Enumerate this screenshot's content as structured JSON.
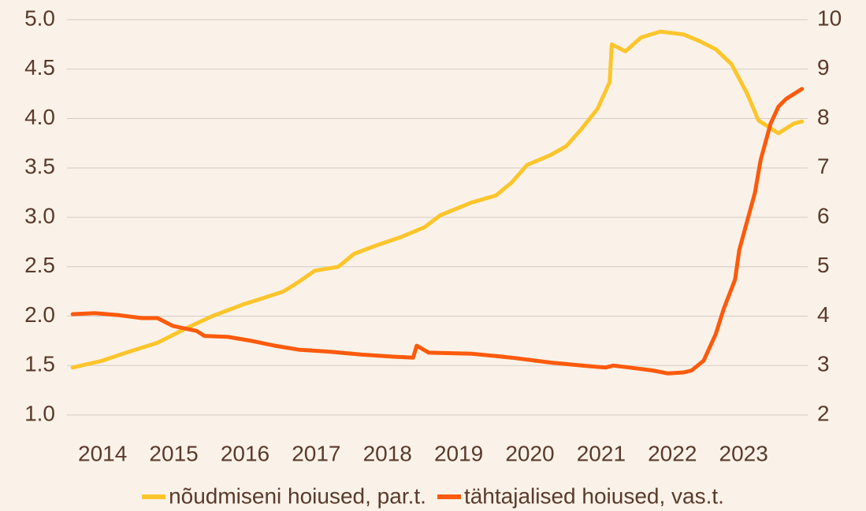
{
  "chart_data": {
    "type": "line",
    "xlim": [
      2014,
      2024.4
    ],
    "xticks": [
      {
        "value": 2014.5,
        "label": "2014"
      },
      {
        "value": 2015.5,
        "label": "2015"
      },
      {
        "value": 2016.5,
        "label": "2016"
      },
      {
        "value": 2017.5,
        "label": "2017"
      },
      {
        "value": 2018.5,
        "label": "2018"
      },
      {
        "value": 2019.5,
        "label": "2019"
      },
      {
        "value": 2020.5,
        "label": "2020"
      },
      {
        "value": 2021.5,
        "label": "2021"
      },
      {
        "value": 2022.5,
        "label": "2022"
      },
      {
        "value": 2023.5,
        "label": "2023"
      }
    ],
    "ylim": [
      1,
      5
    ],
    "yticks": [
      {
        "value": 1,
        "label": "1.0"
      },
      1.5,
      {
        "value": 2,
        "label": "2.0"
      },
      2.5,
      {
        "value": 3,
        "label": "3.0"
      },
      3.5,
      {
        "value": 4,
        "label": "4.0"
      },
      4.5,
      {
        "value": 5,
        "label": "5.0"
      }
    ],
    "y2lim": [
      2,
      10
    ],
    "y2ticks": [
      2,
      3,
      4,
      5,
      6,
      7,
      8,
      9,
      10
    ],
    "grid": true,
    "legend": "bottom",
    "series": [
      {
        "name": "nõudmiseni hoiused, par.t.",
        "color": "#fcc52c",
        "axis": "y2",
        "x": [
          2014.08,
          2014.5,
          2014.83,
          2015.27,
          2015.71,
          2016.04,
          2016.48,
          2016.7,
          2017.04,
          2017.26,
          2017.48,
          2017.81,
          2018.03,
          2018.36,
          2018.69,
          2019.02,
          2019.24,
          2019.68,
          2020.02,
          2020.24,
          2020.46,
          2020.79,
          2021.01,
          2021.23,
          2021.45,
          2021.62,
          2021.65,
          2021.84,
          2022.06,
          2022.33,
          2022.66,
          2022.89,
          2023.11,
          2023.33,
          2023.55,
          2023.71,
          2023.99,
          2024.21,
          2024.32
        ],
        "values": [
          2.96,
          3.1,
          3.26,
          3.46,
          3.78,
          4.0,
          4.24,
          4.34,
          4.5,
          4.7,
          4.92,
          5.0,
          5.26,
          5.44,
          5.6,
          5.8,
          6.04,
          6.3,
          6.44,
          6.7,
          7.06,
          7.26,
          7.44,
          7.8,
          8.2,
          8.74,
          9.5,
          9.36,
          9.64,
          9.76,
          9.7,
          9.56,
          9.4,
          9.1,
          8.5,
          7.96,
          7.7,
          7.9,
          7.94
        ]
      },
      {
        "name": "tähtajalised hoiused, vas.t.",
        "color": "#fc5a0c",
        "x": [
          2014.08,
          2014.39,
          2014.72,
          2015.05,
          2015.27,
          2015.49,
          2015.82,
          2015.93,
          2016.26,
          2016.59,
          2016.92,
          2017.26,
          2017.7,
          2018.14,
          2018.58,
          2018.86,
          2018.91,
          2019.08,
          2019.68,
          2020.24,
          2020.79,
          2021.23,
          2021.56,
          2021.67,
          2021.9,
          2022.22,
          2022.44,
          2022.66,
          2022.77,
          2022.94,
          2023.11,
          2023.22,
          2023.38,
          2023.44,
          2023.66,
          2023.74,
          2023.88,
          2023.99,
          2024.1,
          2024.32
        ],
        "values": [
          2.02,
          2.03,
          2.01,
          1.98,
          1.98,
          1.9,
          1.85,
          1.8,
          1.79,
          1.75,
          1.7,
          1.66,
          1.64,
          1.61,
          1.59,
          1.58,
          1.7,
          1.63,
          1.62,
          1.58,
          1.53,
          1.5,
          1.48,
          1.5,
          1.48,
          1.45,
          1.42,
          1.43,
          1.45,
          1.55,
          1.82,
          2.07,
          2.37,
          2.67,
          3.25,
          3.58,
          3.95,
          4.12,
          4.2,
          4.3
        ]
      }
    ]
  }
}
